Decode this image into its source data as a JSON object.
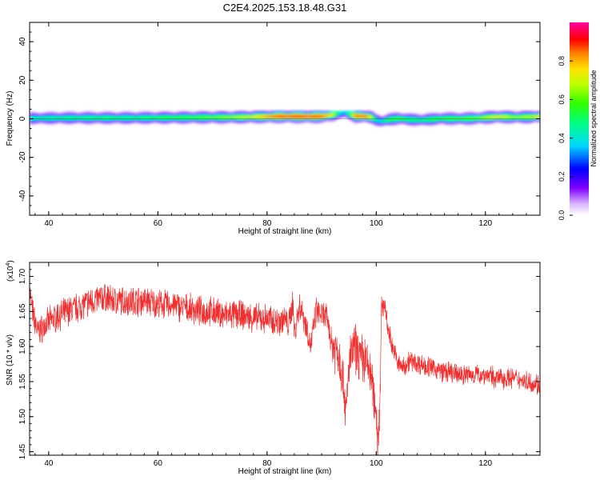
{
  "figure": {
    "title": "C2E4.2025.153.18.48.G31"
  },
  "chart_data": [
    {
      "id": "spectrogram",
      "type": "heatmap",
      "title": "C2E4.2025.153.18.48.G31",
      "xlabel": "Height of straight line (km)",
      "ylabel": "Frequency (Hz)",
      "xlim": [
        36.5,
        130
      ],
      "ylim": [
        -50,
        50
      ],
      "xticks": [
        "40",
        "60",
        "80",
        "100",
        "120"
      ],
      "yticks": [
        "40",
        "20",
        "0",
        "-20",
        "-40"
      ],
      "colorbar": {
        "label": "Normalized spectral amplitude",
        "range": [
          0,
          1
        ],
        "ticks": [
          "0.0",
          "0.2",
          "0.4",
          "0.6",
          "0.8"
        ]
      },
      "ridge": {
        "description_values": "center frequency (Hz) and peak normalized amplitude vs height (km)",
        "x": [
          36.5,
          40,
          45,
          50,
          55,
          60,
          65,
          70,
          75,
          78,
          80,
          82,
          85,
          88,
          90,
          92,
          93,
          94,
          95,
          96,
          98,
          99,
          100,
          101,
          102,
          104,
          106,
          108,
          110,
          112,
          115,
          118,
          120,
          122,
          125,
          128,
          130
        ],
        "freq": [
          0.4,
          0.5,
          0.6,
          0.6,
          0.6,
          0.7,
          0.8,
          0.9,
          1.0,
          1.2,
          1.3,
          1.4,
          1.4,
          1.3,
          1.5,
          2.2,
          3.2,
          3.4,
          2.6,
          1.6,
          1.4,
          1.0,
          -0.6,
          -1.2,
          -0.3,
          0.3,
          -0.2,
          -0.5,
          -0.1,
          0.3,
          0.2,
          0.4,
          0.8,
          1.2,
          1.0,
          1.1,
          1.4
        ],
        "amp": [
          0.45,
          0.48,
          0.5,
          0.52,
          0.5,
          0.55,
          0.58,
          0.62,
          0.68,
          0.75,
          0.85,
          0.92,
          0.95,
          0.93,
          0.9,
          0.72,
          0.45,
          0.35,
          0.55,
          0.88,
          0.9,
          0.7,
          0.4,
          0.45,
          0.55,
          0.6,
          0.52,
          0.5,
          0.55,
          0.58,
          0.6,
          0.62,
          0.68,
          0.75,
          0.65,
          0.68,
          0.75
        ]
      }
    },
    {
      "id": "snr",
      "type": "line",
      "xlabel": "Height of straight line (km)",
      "ylabel": "SNR (10 * v/v)",
      "yscale_label": "(x10",
      "yscale_exp": "4",
      "yscale_close": ")",
      "xlim": [
        36.5,
        130
      ],
      "ylim": [
        1.445,
        1.72
      ],
      "xticks": [
        "40",
        "60",
        "80",
        "100",
        "120"
      ],
      "yticks": [
        "1.70",
        "1.65",
        "1.60",
        "1.55",
        "1.50",
        "1.45"
      ],
      "color": "#f03030",
      "series": [
        {
          "x": [
            36.5,
            37,
            38,
            40,
            42,
            45,
            48,
            50,
            52,
            55,
            58,
            60,
            62,
            65,
            68,
            70,
            72,
            75,
            78,
            80,
            82,
            83,
            84,
            84.7,
            85,
            86,
            87,
            88,
            89,
            90,
            91,
            92,
            93,
            94,
            94.5,
            95,
            96,
            97,
            98,
            99,
            99.5,
            100,
            100.3,
            100.6,
            101,
            101.5,
            102,
            103,
            104,
            105,
            106,
            108,
            110,
            112,
            115,
            118,
            120,
            122,
            125,
            128,
            130
          ],
          "y": [
            1.68,
            1.65,
            1.62,
            1.635,
            1.645,
            1.655,
            1.665,
            1.67,
            1.665,
            1.665,
            1.665,
            1.66,
            1.66,
            1.655,
            1.65,
            1.65,
            1.645,
            1.645,
            1.64,
            1.64,
            1.635,
            1.64,
            1.63,
            1.665,
            1.62,
            1.66,
            1.635,
            1.6,
            1.65,
            1.645,
            1.64,
            1.6,
            1.595,
            1.55,
            1.5,
            1.575,
            1.6,
            1.585,
            1.58,
            1.56,
            1.53,
            1.51,
            1.46,
            1.51,
            1.65,
            1.665,
            1.63,
            1.6,
            1.575,
            1.57,
            1.58,
            1.575,
            1.57,
            1.565,
            1.56,
            1.56,
            1.56,
            1.555,
            1.555,
            1.55,
            1.545
          ]
        }
      ]
    }
  ]
}
